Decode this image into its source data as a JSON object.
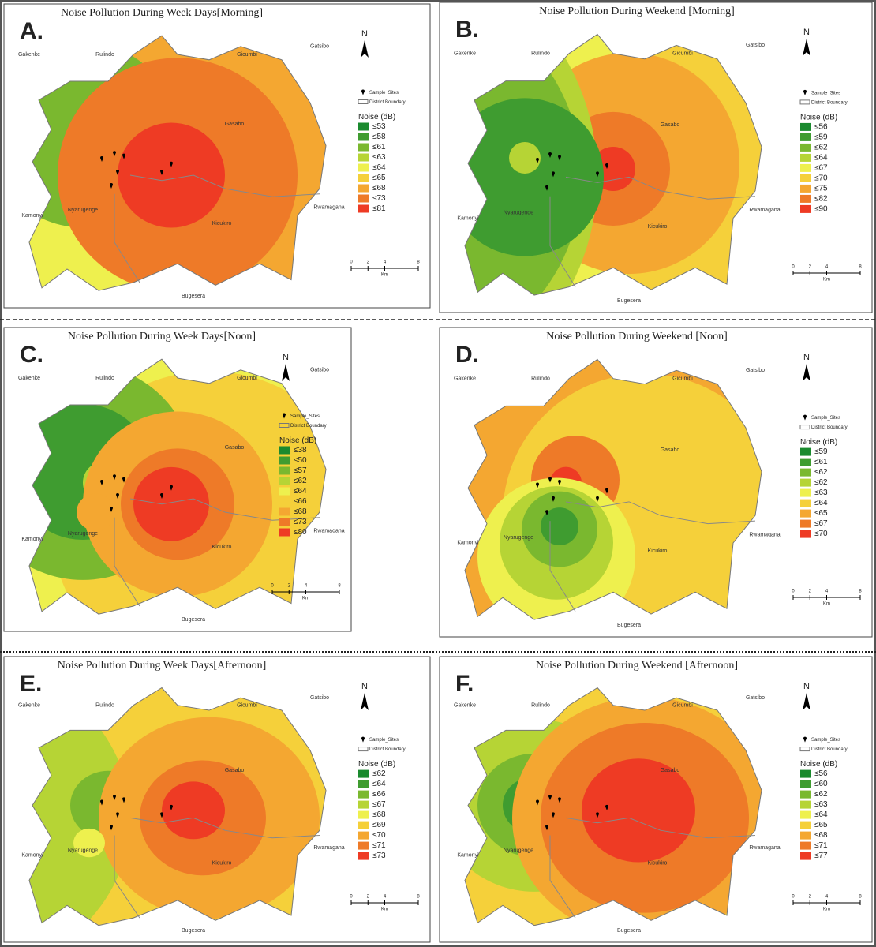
{
  "common": {
    "north": "N",
    "sample_sites": "Sample_Sites",
    "district_boundary": "District Boundary",
    "legend_title": "Noise (dB)",
    "scale": [
      "0",
      "2",
      "4",
      "8"
    ],
    "scale_unit": "Km",
    "districts": [
      "Gakenke",
      "Rulindo",
      "Gicumbi",
      "Gatsibo",
      "Gasabo",
      "Kamonyi",
      "Nyarugenge",
      "Kicukiro",
      "Rwamagana",
      "Bugesera"
    ],
    "legend_colors": [
      "#1a8a2e",
      "#3f9c30",
      "#7ab82f",
      "#b6d435",
      "#eef04e",
      "#f5d03a",
      "#f4a731",
      "#ee7a28",
      "#ee3b24"
    ]
  },
  "panels": [
    {
      "letter": "A.",
      "title": "Noise Pollution During Week Days[Morning]",
      "legend": [
        "≤53",
        "≤58",
        "≤61",
        "≤63",
        "≤64",
        "≤65",
        "≤68",
        "≤73",
        "≤81"
      ]
    },
    {
      "letter": "B.",
      "title": "Noise Pollution During Weekend [Morning]",
      "legend": [
        "≤56",
        "≤59",
        "≤62",
        "≤64",
        "≤67",
        "≤70",
        "≤75",
        "≤82",
        "≤90"
      ]
    },
    {
      "letter": "C.",
      "title": "Noise Pollution During Week Days[Noon]",
      "legend": [
        "≤38",
        "≤50",
        "≤57",
        "≤62",
        "≤64",
        "≤66",
        "≤68",
        "≤73",
        "≤80"
      ]
    },
    {
      "letter": "D.",
      "title": "Noise Pollution During Weekend [Noon]",
      "legend": [
        "≤59",
        "≤61",
        "≤62",
        "≤62",
        "≤63",
        "≤64",
        "≤65",
        "≤67",
        "≤70"
      ]
    },
    {
      "letter": "E.",
      "title": "Noise Pollution During Week Days[Afternoon]",
      "legend": [
        "≤62",
        "≤64",
        "≤66",
        "≤67",
        "≤68",
        "≤69",
        "≤70",
        "≤71",
        "≤73"
      ]
    },
    {
      "letter": "F.",
      "title": "Noise Pollution During Weekend [Afternoon]",
      "legend": [
        "≤56",
        "≤60",
        "≤62",
        "≤63",
        "≤64",
        "≤65",
        "≤68",
        "≤71",
        "≤77"
      ]
    }
  ]
}
